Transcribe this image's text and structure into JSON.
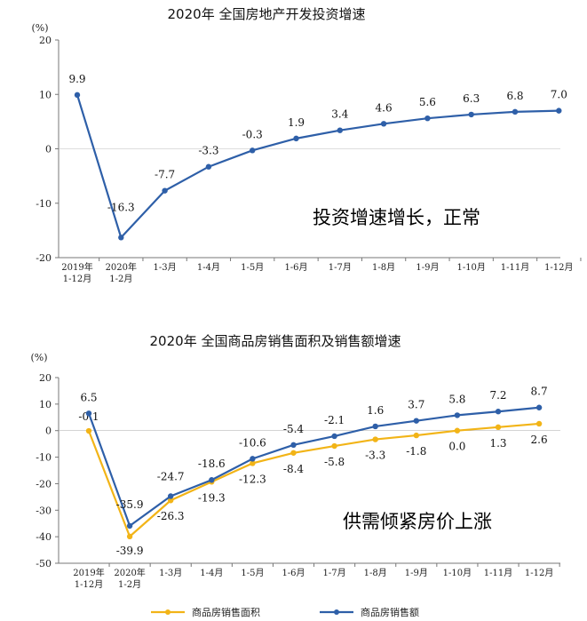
{
  "chart_data": [
    {
      "type": "line",
      "title": "2020年  全国房地产开发投资增速",
      "ylabel": "(%)",
      "ylim": [
        -20,
        20
      ],
      "yticks": [
        "20",
        "10",
        "0",
        "-10",
        "-20"
      ],
      "categories": [
        "2019年|1-12月",
        "2020年|1-2月",
        "1-3月",
        "1-4月",
        "1-5月",
        "1-6月",
        "1-7月",
        "1-8月",
        "1-9月",
        "1-10月",
        "1-11月",
        "1-12月"
      ],
      "series": [
        {
          "color": "#2e5fa8",
          "values": [
            9.9,
            -16.3,
            -7.7,
            -3.3,
            -0.3,
            1.9,
            3.4,
            4.6,
            5.6,
            6.3,
            6.8,
            7.0
          ],
          "labels": [
            "9.9",
            "-16.3",
            "-7.7",
            "-3.3",
            "-0.3",
            "1.9",
            "3.4",
            "4.6",
            "5.6",
            "6.3",
            "6.8",
            "7.0"
          ]
        }
      ],
      "annotation": "投资增速增长，正常",
      "grid": false
    },
    {
      "type": "line",
      "title": "2020年  全国商品房销售面积及销售额增速",
      "ylabel": "(%)",
      "ylim": [
        -50,
        20
      ],
      "yticks": [
        "20",
        "10",
        "0",
        "-10",
        "-20",
        "-30",
        "-40",
        "-50"
      ],
      "categories": [
        "2019年|1-12月",
        "2020年|1-2月",
        "1-3月",
        "1-4月",
        "1-5月",
        "1-6月",
        "1-7月",
        "1-8月",
        "1-9月",
        "1-10月",
        "1-11月",
        "1-12月"
      ],
      "series": [
        {
          "name": "商品房销售面积",
          "color": "#f2b417",
          "values": [
            -0.1,
            -39.9,
            -26.3,
            -19.3,
            -12.3,
            -8.4,
            -5.8,
            -3.3,
            -1.8,
            0.0,
            1.3,
            2.6
          ],
          "labels": [
            "-0.1",
            "-39.9",
            "-26.3",
            "-19.3",
            "-12.3",
            "-8.4",
            "-5.8",
            "-3.3",
            "-1.8",
            "0.0",
            "1.3",
            "2.6"
          ]
        },
        {
          "name": "商品房销售额",
          "color": "#2e5fa8",
          "values": [
            6.5,
            -35.9,
            -24.7,
            -18.6,
            -10.6,
            -5.4,
            -2.1,
            1.6,
            3.7,
            5.8,
            7.2,
            8.7
          ],
          "labels": [
            "6.5",
            "-35.9",
            "-24.7",
            "-18.6",
            "-10.6",
            "-5.4",
            "-2.1",
            "1.6",
            "3.7",
            "5.8",
            "7.2",
            "8.7"
          ]
        }
      ],
      "annotation": "供需倾紧房价上涨",
      "legend_position": "bottom",
      "grid": false
    }
  ]
}
